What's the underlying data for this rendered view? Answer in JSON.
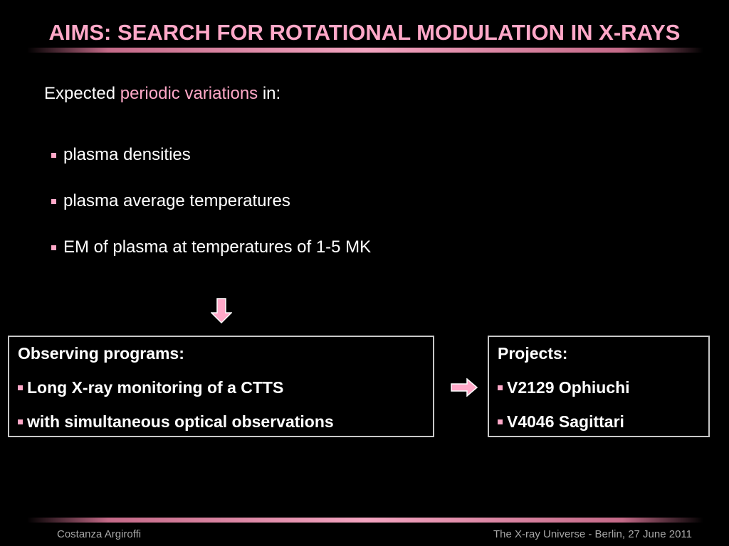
{
  "slide": {
    "title": "AIMS: SEARCH FOR ROTATIONAL MODULATION IN X-RAYS",
    "intro": {
      "prefix": "Expected ",
      "highlight": "periodic variations",
      "suffix": " in:"
    },
    "bullets": [
      "plasma densities",
      "plasma average temperatures",
      "EM of plasma at temperatures of 1-5 MK"
    ],
    "observing": {
      "heading": "Observing programs:",
      "items": [
        "Long X-ray monitoring of a CTTS",
        "with simultaneous optical observations"
      ]
    },
    "projects": {
      "heading": "Projects:",
      "items": [
        "V2129 Ophiuchi",
        "V4046 Sagittari"
      ]
    },
    "footer": {
      "author": "Costanza Argiroffi",
      "event": "The X-ray Universe - Berlin, 27 June 2011"
    }
  },
  "colors": {
    "background": "#000000",
    "accent": "#ffa8c8",
    "text": "#ffffff",
    "box_border": "#c8c8c8",
    "footer_text": "#a8a8a8"
  },
  "icons": [
    "square-bullet-icon",
    "arrow-down-icon",
    "arrow-right-icon"
  ]
}
